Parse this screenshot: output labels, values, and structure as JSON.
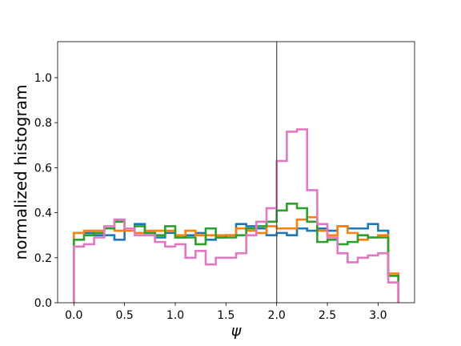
{
  "chart_data": {
    "type": "histogram-step",
    "xlabel": "ψ",
    "ylabel": "normalized histogram",
    "xlim": [
      -0.16,
      3.36
    ],
    "ylim": [
      0.0,
      1.16
    ],
    "xticks": [
      0.0,
      0.5,
      1.0,
      1.5,
      2.0,
      2.5,
      3.0
    ],
    "xtick_labels": [
      "0.0",
      "0.5",
      "1.0",
      "1.5",
      "2.0",
      "2.5",
      "3.0"
    ],
    "yticks": [
      0.0,
      0.2,
      0.4,
      0.6,
      0.8,
      1.0
    ],
    "ytick_labels": [
      "0.0",
      "0.2",
      "0.4",
      "0.6",
      "0.8",
      "1.0"
    ],
    "vline_x": 2.0,
    "vline_color": "#555555",
    "bin_edges": [
      0.0,
      0.1,
      0.2,
      0.3,
      0.4,
      0.5,
      0.6,
      0.7,
      0.8,
      0.9,
      1.0,
      1.1,
      1.2,
      1.3,
      1.4,
      1.5,
      1.6,
      1.7,
      1.8,
      1.9,
      2.0,
      2.1,
      2.2,
      2.3,
      2.4,
      2.5,
      2.6,
      2.7,
      2.8,
      2.9,
      3.0,
      3.1,
      3.2
    ],
    "series": [
      {
        "color": "#1f77b4",
        "values": [
          0.31,
          0.31,
          0.3,
          0.3,
          0.28,
          0.33,
          0.35,
          0.31,
          0.29,
          0.31,
          0.29,
          0.3,
          0.31,
          0.28,
          0.29,
          0.3,
          0.35,
          0.34,
          0.33,
          0.3,
          0.31,
          0.3,
          0.33,
          0.32,
          0.33,
          0.32,
          0.34,
          0.33,
          0.33,
          0.35,
          0.32,
          0.12
        ]
      },
      {
        "color": "#ff7f0e",
        "values": [
          0.31,
          0.32,
          0.32,
          0.33,
          0.32,
          0.32,
          0.31,
          0.32,
          0.32,
          0.32,
          0.3,
          0.32,
          0.3,
          0.3,
          0.3,
          0.3,
          0.33,
          0.32,
          0.31,
          0.34,
          0.33,
          0.33,
          0.37,
          0.38,
          0.32,
          0.3,
          0.34,
          0.31,
          0.28,
          0.29,
          0.3,
          0.13
        ]
      },
      {
        "color": "#2ca02c",
        "values": [
          0.28,
          0.3,
          0.31,
          0.33,
          0.36,
          0.33,
          0.34,
          0.31,
          0.3,
          0.34,
          0.29,
          0.29,
          0.26,
          0.33,
          0.29,
          0.29,
          0.3,
          0.33,
          0.34,
          0.36,
          0.41,
          0.44,
          0.42,
          0.36,
          0.27,
          0.28,
          0.26,
          0.27,
          0.3,
          0.29,
          0.29,
          0.12
        ]
      },
      {
        "color": "#e377c2",
        "values": [
          0.25,
          0.26,
          0.29,
          0.34,
          0.37,
          0.33,
          0.3,
          0.3,
          0.27,
          0.25,
          0.26,
          0.2,
          0.23,
          0.17,
          0.2,
          0.2,
          0.22,
          0.3,
          0.36,
          0.42,
          0.63,
          0.76,
          0.77,
          0.5,
          0.35,
          0.29,
          0.22,
          0.18,
          0.2,
          0.21,
          0.22,
          0.09
        ]
      }
    ]
  }
}
